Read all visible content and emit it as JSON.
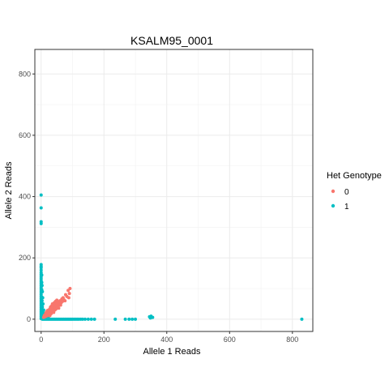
{
  "chart_data": {
    "type": "scatter",
    "title": "KSALM95_0001",
    "xlabel": "Allele 1 Reads",
    "ylabel": "Allele 2 Reads",
    "xlim": [
      -20,
      865
    ],
    "ylim": [
      -40,
      880
    ],
    "xticks": [
      0,
      200,
      400,
      600,
      800
    ],
    "yticks": [
      0,
      200,
      400,
      600,
      800
    ],
    "grid": true,
    "legend": {
      "title": "Het Genotype",
      "position": "right"
    },
    "series": [
      {
        "name": "0",
        "color": "#F8766D",
        "points": [
          [
            8,
            6
          ],
          [
            10,
            12
          ],
          [
            12,
            8
          ],
          [
            14,
            16
          ],
          [
            15,
            20
          ],
          [
            16,
            10
          ],
          [
            18,
            14
          ],
          [
            18,
            24
          ],
          [
            20,
            18
          ],
          [
            20,
            28
          ],
          [
            22,
            12
          ],
          [
            22,
            22
          ],
          [
            24,
            30
          ],
          [
            24,
            16
          ],
          [
            26,
            26
          ],
          [
            26,
            20
          ],
          [
            28,
            34
          ],
          [
            28,
            12
          ],
          [
            30,
            24
          ],
          [
            30,
            40
          ],
          [
            32,
            30
          ],
          [
            32,
            18
          ],
          [
            34,
            36
          ],
          [
            34,
            44
          ],
          [
            36,
            26
          ],
          [
            36,
            50
          ],
          [
            38,
            32
          ],
          [
            38,
            40
          ],
          [
            40,
            46
          ],
          [
            40,
            22
          ],
          [
            42,
            36
          ],
          [
            42,
            54
          ],
          [
            44,
            30
          ],
          [
            44,
            48
          ],
          [
            46,
            40
          ],
          [
            46,
            58
          ],
          [
            48,
            34
          ],
          [
            48,
            44
          ],
          [
            50,
            52
          ],
          [
            50,
            62
          ],
          [
            52,
            40
          ],
          [
            52,
            48
          ],
          [
            54,
            56
          ],
          [
            55,
            44
          ],
          [
            56,
            36
          ],
          [
            58,
            50
          ],
          [
            60,
            60
          ],
          [
            62,
            46
          ],
          [
            64,
            54
          ],
          [
            66,
            66
          ],
          [
            68,
            58
          ],
          [
            70,
            70
          ],
          [
            72,
            64
          ],
          [
            76,
            60
          ],
          [
            78,
            80
          ],
          [
            82,
            74
          ],
          [
            86,
            94
          ],
          [
            88,
            70
          ],
          [
            90,
            84
          ],
          [
            92,
            100
          ]
        ]
      },
      {
        "name": "1",
        "color": "#00BFC4",
        "points": [
          [
            0,
            405
          ],
          [
            0,
            363
          ],
          [
            0,
            318
          ],
          [
            0,
            312
          ],
          [
            0,
            178
          ],
          [
            0,
            172
          ],
          [
            0,
            168
          ],
          [
            0,
            160
          ],
          [
            0,
            152
          ],
          [
            0,
            146
          ],
          [
            0,
            140
          ],
          [
            0,
            134
          ],
          [
            0,
            128
          ],
          [
            0,
            122
          ],
          [
            0,
            116
          ],
          [
            0,
            110
          ],
          [
            0,
            104
          ],
          [
            0,
            98
          ],
          [
            0,
            92
          ],
          [
            0,
            86
          ],
          [
            0,
            80
          ],
          [
            0,
            74
          ],
          [
            0,
            68
          ],
          [
            0,
            62
          ],
          [
            0,
            56
          ],
          [
            0,
            50
          ],
          [
            0,
            44
          ],
          [
            0,
            38
          ],
          [
            0,
            32
          ],
          [
            0,
            26
          ],
          [
            0,
            20
          ],
          [
            0,
            14
          ],
          [
            0,
            8
          ],
          [
            0,
            2
          ],
          [
            2,
            144
          ],
          [
            2,
            120
          ],
          [
            2,
            96
          ],
          [
            2,
            72
          ],
          [
            2,
            48
          ],
          [
            2,
            24
          ],
          [
            3,
            110
          ],
          [
            3,
            60
          ],
          [
            4,
            90
          ],
          [
            4,
            40
          ],
          [
            5,
            70
          ],
          [
            5,
            30
          ],
          [
            6,
            50
          ],
          [
            6,
            20
          ],
          [
            8,
            30
          ],
          [
            8,
            12
          ],
          [
            10,
            20
          ],
          [
            10,
            8
          ],
          [
            12,
            14
          ],
          [
            12,
            4
          ],
          [
            14,
            8
          ],
          [
            14,
            2
          ],
          [
            16,
            6
          ],
          [
            18,
            10
          ],
          [
            20,
            4
          ],
          [
            22,
            8
          ],
          [
            24,
            2
          ],
          [
            4,
            0
          ],
          [
            8,
            0
          ],
          [
            12,
            0
          ],
          [
            16,
            0
          ],
          [
            20,
            0
          ],
          [
            24,
            0
          ],
          [
            28,
            0
          ],
          [
            32,
            0
          ],
          [
            36,
            0
          ],
          [
            40,
            0
          ],
          [
            44,
            0
          ],
          [
            48,
            0
          ],
          [
            52,
            0
          ],
          [
            56,
            0
          ],
          [
            60,
            0
          ],
          [
            64,
            0
          ],
          [
            68,
            0
          ],
          [
            72,
            0
          ],
          [
            76,
            0
          ],
          [
            80,
            0
          ],
          [
            84,
            0
          ],
          [
            88,
            0
          ],
          [
            92,
            0
          ],
          [
            96,
            0
          ],
          [
            100,
            0
          ],
          [
            105,
            0
          ],
          [
            110,
            0
          ],
          [
            115,
            0
          ],
          [
            120,
            0
          ],
          [
            126,
            0
          ],
          [
            132,
            0
          ],
          [
            140,
            0
          ],
          [
            150,
            0
          ],
          [
            160,
            0
          ],
          [
            170,
            0
          ],
          [
            236,
            0
          ],
          [
            268,
            0
          ],
          [
            280,
            0
          ],
          [
            290,
            0
          ],
          [
            300,
            0
          ],
          [
            345,
            8
          ],
          [
            348,
            4
          ],
          [
            350,
            10
          ],
          [
            355,
            6
          ],
          [
            830,
            0
          ]
        ]
      }
    ]
  }
}
